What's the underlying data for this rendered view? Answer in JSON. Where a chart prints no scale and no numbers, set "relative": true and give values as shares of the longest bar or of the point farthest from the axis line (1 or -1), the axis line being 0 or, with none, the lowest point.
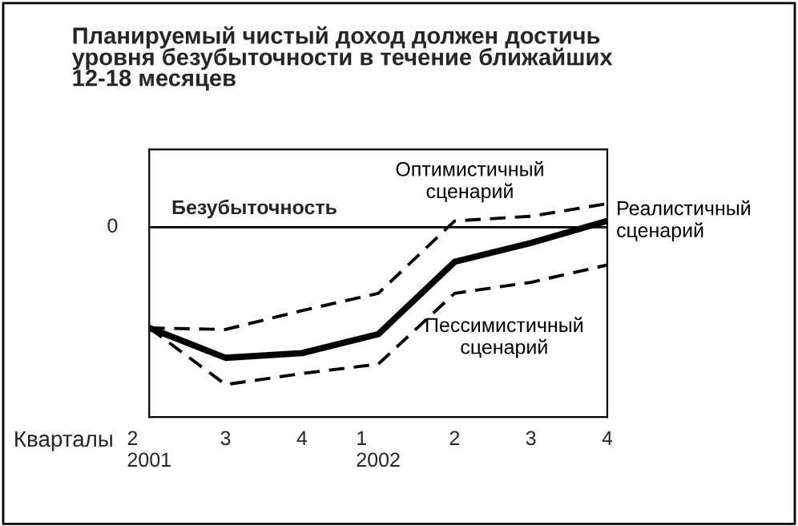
{
  "chart_data": {
    "type": "line",
    "title": "Планируемый чистый доход должен достичь\nуровня безубыточности в течение ближайших\n12-18 месяцев",
    "xlabel": "Кварталы",
    "categories": [
      "2\n2001",
      "3",
      "4",
      "1\n2002",
      "2",
      "3",
      "4"
    ],
    "relative": true,
    "series": [
      {
        "name": "Реалистичный\nсценарий",
        "color": "#000000",
        "line_style": "solid",
        "values": [
          -0.64,
          -0.83,
          -0.8,
          -0.68,
          -0.22,
          -0.1,
          0.04
        ]
      },
      {
        "name": "Оптимистичный\nсценарий",
        "color": "#000000",
        "line_style": "dashed",
        "values": [
          -0.64,
          -0.65,
          -0.53,
          -0.42,
          0.04,
          0.07,
          0.15
        ]
      },
      {
        "name": "Пессимистичный\nсценарий",
        "color": "#000000",
        "line_style": "dashed",
        "values": [
          -0.64,
          -1.0,
          -0.93,
          -0.87,
          -0.42,
          -0.35,
          -0.24
        ]
      }
    ],
    "annotations": [
      "0"
    ],
    "ref_lines": [
      {
        "axis": "y",
        "value": 0,
        "label": "Безубыточность",
        "color": "#000000"
      }
    ],
    "grid": false,
    "legend": false
  }
}
